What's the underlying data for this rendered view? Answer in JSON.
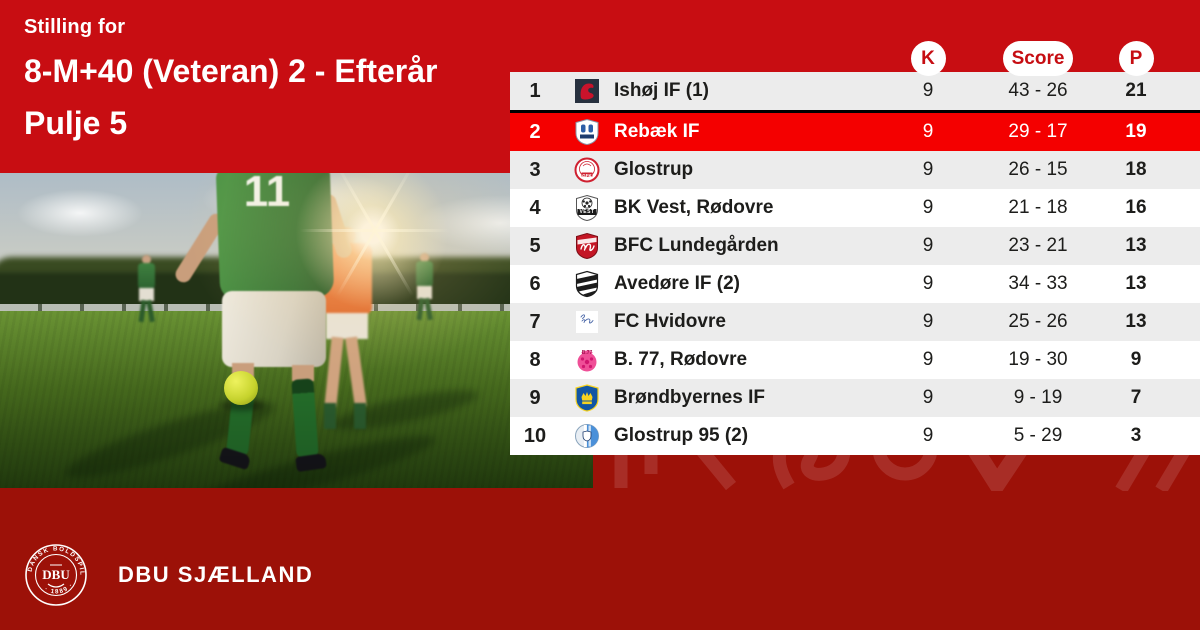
{
  "header": {
    "eyebrow": "Stilling for",
    "title": "8-M+40 (Veteran) 2 - Efterår",
    "subtitle": "Pulje 5"
  },
  "photo": {
    "jersey_number": "11"
  },
  "table": {
    "columns": {
      "k": "K",
      "score": "Score",
      "p": "P"
    },
    "rows": [
      {
        "pos": "1",
        "club": "Ishøj IF (1)",
        "k": "9",
        "score": "43 - 26",
        "p": "21",
        "logo": "ishoj",
        "highlight": false
      },
      {
        "pos": "2",
        "club": "Rebæk IF",
        "k": "9",
        "score": "29 - 17",
        "p": "19",
        "logo": "rebaek",
        "highlight": true
      },
      {
        "pos": "3",
        "club": "Glostrup",
        "k": "9",
        "score": "26 - 15",
        "p": "18",
        "logo": "glostrup",
        "logo_text": "GFK",
        "highlight": false
      },
      {
        "pos": "4",
        "club": "BK Vest, Rødovre",
        "k": "9",
        "score": "21 - 18",
        "p": "16",
        "logo": "bkvest",
        "logo_text": "VEST",
        "highlight": false
      },
      {
        "pos": "5",
        "club": "BFC Lundegården",
        "k": "9",
        "score": "23 - 21",
        "p": "13",
        "logo": "bfc",
        "highlight": false
      },
      {
        "pos": "6",
        "club": "Avedøre IF (2)",
        "k": "9",
        "score": "34 - 33",
        "p": "13",
        "logo": "avedore",
        "highlight": false
      },
      {
        "pos": "7",
        "club": "FC Hvidovre",
        "k": "9",
        "score": "25 - 26",
        "p": "13",
        "logo": "fchvidovre",
        "highlight": false
      },
      {
        "pos": "8",
        "club": "B. 77, Rødovre",
        "k": "9",
        "score": "19 - 30",
        "p": "9",
        "logo": "b77",
        "logo_text": "B.77",
        "highlight": false
      },
      {
        "pos": "9",
        "club": "Brøndbyernes IF",
        "k": "9",
        "score": "9 - 19",
        "p": "7",
        "logo": "brondby",
        "highlight": false
      },
      {
        "pos": "10",
        "club": "Glostrup 95 (2)",
        "k": "9",
        "score": "5 - 29",
        "p": "3",
        "logo": "glostrup95",
        "highlight": false
      }
    ]
  },
  "footer": {
    "brand": "DBU SJÆLLAND",
    "logo_arc_top": "DANSK BOLDSPIL·UNION",
    "logo_arc_bottom": "· 1889 ·",
    "logo_center": "DBU"
  },
  "colors": {
    "brand_red": "#c80d12",
    "highlight_red": "#f40000",
    "dark_red": "#9c1108",
    "row_gray": "#ececec",
    "pill_text_red": "#c60d12",
    "text_dark": "#1d1d1b"
  }
}
